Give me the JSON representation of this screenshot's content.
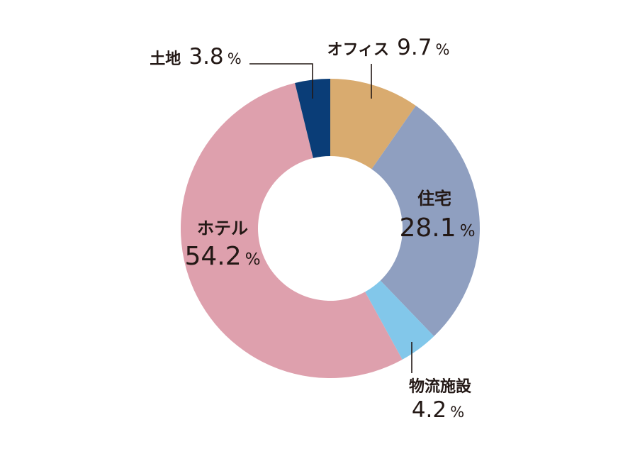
{
  "chart_data": {
    "type": "pie",
    "donut": true,
    "title": "",
    "unit": "%",
    "start": "top",
    "direction": "clockwise",
    "slices": [
      {
        "label": "オフィス",
        "value": 9.7,
        "value_text": "9.7",
        "color": "#d9ab6f"
      },
      {
        "label": "住宅",
        "value": 28.1,
        "value_text": "28.1",
        "color": "#8f9fc0"
      },
      {
        "label": "物流施設",
        "value": 4.2,
        "value_text": "4.2",
        "color": "#82c7ea"
      },
      {
        "label": "ホテル",
        "value": 54.2,
        "value_text": "54.2",
        "color": "#dea0ad"
      },
      {
        "label": "土地",
        "value": 3.8,
        "value_text": "3.8",
        "color": "#0a3d77"
      }
    ]
  }
}
